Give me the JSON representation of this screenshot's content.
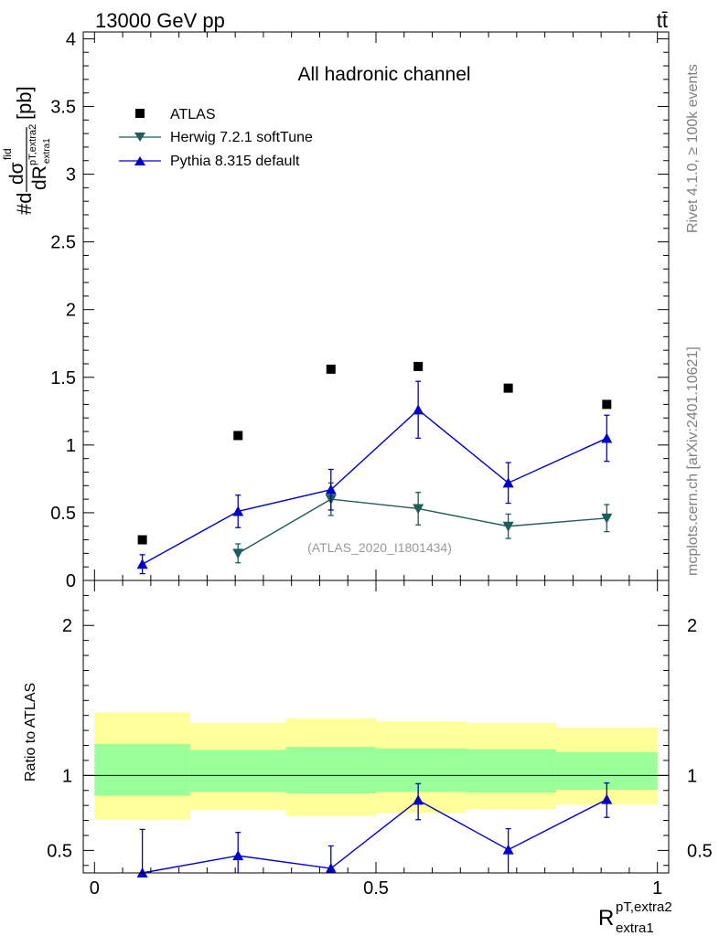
{
  "header": {
    "energy_label": "13000 GeV pp",
    "process_label": "tt̄"
  },
  "side_labels": {
    "rivet": "Rivet 4.1.0, ≥ 100k events",
    "mcplots": "mcplots.cern.ch [arXiv:2401.10621]"
  },
  "chart_data": [
    {
      "type": "scatter",
      "panel": "main",
      "title": "All hadronic channel",
      "analysis_label": "(ATLAS_2020_I1801434)",
      "ylabel": "#d dσ^fid / dR^{pT,extra2}_{extra1} [pb]",
      "ylabel_parts": {
        "prefix": "#d",
        "num": "dσ",
        "num_sup": "fid",
        "den": "dR",
        "den_sup": "pT,extra2",
        "den_sub": "extra1",
        "unit": "[pb]"
      },
      "ylim": [
        0,
        4.05
      ],
      "xlim": [
        -0.02,
        1.02
      ],
      "yticks": [
        0.5,
        1,
        1.5,
        2,
        2.5,
        3,
        3.5,
        4
      ],
      "ytick_labels": [
        "0.5",
        "1",
        "1.5",
        "2",
        "2.5",
        "3",
        "3.5",
        "4"
      ],
      "ytick_zero_label": "0",
      "legend_position": "top-left",
      "series": [
        {
          "name": "ATLAS",
          "marker": "square",
          "color": "#000000",
          "x": [
            0.085,
            0.255,
            0.42,
            0.575,
            0.735,
            0.91
          ],
          "y": [
            0.3,
            1.07,
            1.56,
            1.58,
            1.42,
            1.3
          ]
        },
        {
          "name": "Herwig 7.2.1 softTune",
          "marker": "triangle-down",
          "color": "#1f5c5c",
          "x": [
            0.255,
            0.42,
            0.575,
            0.735,
            0.91
          ],
          "y": [
            0.2,
            0.6,
            0.53,
            0.4,
            0.46
          ],
          "err": [
            0.07,
            0.12,
            0.12,
            0.09,
            0.1
          ]
        },
        {
          "name": "Pythia 8.315 default",
          "marker": "triangle-up",
          "color": "#0000cc",
          "x": [
            0.085,
            0.255,
            0.42,
            0.575,
            0.735,
            0.91
          ],
          "y": [
            0.12,
            0.51,
            0.67,
            1.26,
            0.72,
            1.05
          ],
          "err": [
            0.07,
            0.12,
            0.15,
            0.21,
            0.15,
            0.17
          ]
        }
      ]
    },
    {
      "type": "scatter",
      "panel": "ratio",
      "ylabel": "Ratio to ATLAS",
      "xlabel": "R^{pT,extra2}_{extra1}",
      "xlabel_parts": {
        "base": "R",
        "sup": "pT,extra2",
        "sub": "extra1"
      },
      "ylim": [
        0.35,
        2.3
      ],
      "xlim": [
        -0.02,
        1.02
      ],
      "yticks": [
        0.5,
        1,
        2
      ],
      "ytick_labels": [
        "0.5",
        "1",
        "2"
      ],
      "xticks": [
        0,
        0.5,
        1
      ],
      "xtick_labels": [
        "0",
        "0.5",
        "1"
      ],
      "reference_line": 1,
      "bins": [
        {
          "lo": 0.0,
          "hi": 0.17,
          "inner": [
            0.865,
            1.21
          ],
          "outer": [
            0.705,
            1.42
          ]
        },
        {
          "lo": 0.17,
          "hi": 0.34,
          "inner": [
            0.89,
            1.17
          ],
          "outer": [
            0.77,
            1.35
          ]
        },
        {
          "lo": 0.34,
          "hi": 0.5,
          "inner": [
            0.88,
            1.19
          ],
          "outer": [
            0.73,
            1.38
          ]
        },
        {
          "lo": 0.5,
          "hi": 0.66,
          "inner": [
            0.89,
            1.18
          ],
          "outer": [
            0.75,
            1.36
          ]
        },
        {
          "lo": 0.66,
          "hi": 0.82,
          "inner": [
            0.885,
            1.175
          ],
          "outer": [
            0.775,
            1.35
          ]
        },
        {
          "lo": 0.82,
          "hi": 1.0,
          "inner": [
            0.905,
            1.155
          ],
          "outer": [
            0.805,
            1.32
          ]
        }
      ],
      "band_colors": {
        "inner": "#99ff99",
        "outer": "#ffff99"
      },
      "series": [
        {
          "name": "Pythia 8.315 default",
          "marker": "triangle-up",
          "color": "#0000cc",
          "x": [
            0.085,
            0.255,
            0.42,
            0.575,
            0.735,
            0.91
          ],
          "y": [
            0.35,
            0.465,
            0.38,
            0.835,
            0.505,
            0.84
          ],
          "err_lo": [
            0.3,
            0.12,
            0.15,
            0.13,
            0.16,
            0.12
          ],
          "err_hi": [
            0.29,
            0.155,
            0.15,
            0.11,
            0.14,
            0.11
          ]
        }
      ]
    }
  ]
}
